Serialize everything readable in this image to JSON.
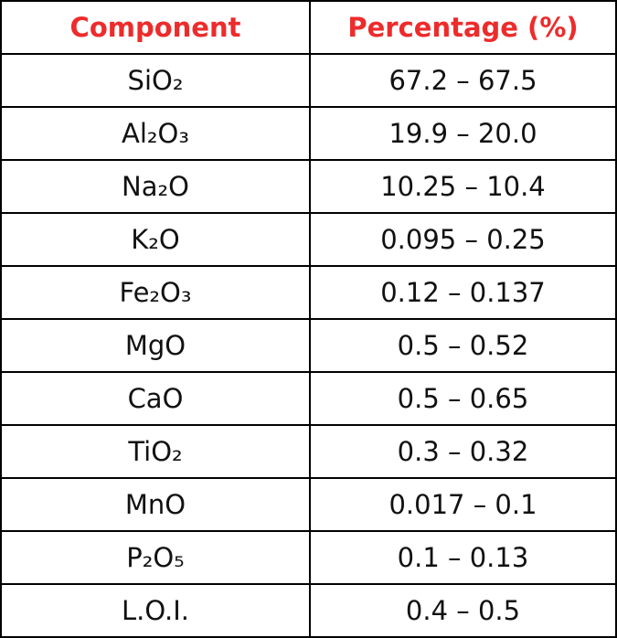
{
  "table": {
    "header": [
      "Component",
      "Percentage (%)"
    ],
    "rows": [
      [
        "SiO₂",
        "67.2 – 67.5"
      ],
      [
        "Al₂O₃",
        "19.9 – 20.0"
      ],
      [
        "Na₂O",
        "10.25 – 10.4"
      ],
      [
        "K₂O",
        "0.095 – 0.25"
      ],
      [
        "Fe₂O₃",
        "0.12 – 0.137"
      ],
      [
        "MgO",
        "0.5 – 0.52"
      ],
      [
        "CaO",
        "0.5 – 0.65"
      ],
      [
        "TiO₂",
        "0.3 – 0.32"
      ],
      [
        "MnO",
        "0.017 – 0.1"
      ],
      [
        "P₂O₅",
        "0.1 – 0.13"
      ],
      [
        "L.O.I.",
        "0.4 – 0.5"
      ]
    ]
  }
}
